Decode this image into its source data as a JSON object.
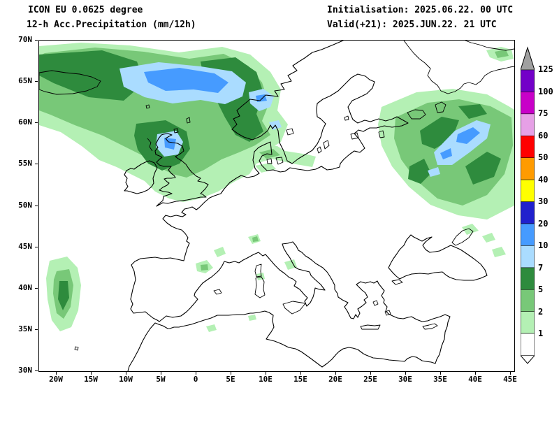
{
  "header": {
    "model_line": "ICON EU 0.0625 degree",
    "product_line": "12-h Acc.Precipitation (mm/12h)",
    "init_line": "Initialisation: 2025.06.22. 00 UTC",
    "valid_line": "Valid(+21): 2025.JUN.22. 21 UTC"
  },
  "axes": {
    "lat": [
      "70N",
      "65N",
      "60N",
      "55N",
      "50N",
      "45N",
      "40N",
      "35N",
      "30N"
    ],
    "lon": [
      "20W",
      "15W",
      "10W",
      "5W",
      "0",
      "5E",
      "10E",
      "15E",
      "20E",
      "25E",
      "30E",
      "35E",
      "40E",
      "45E"
    ]
  },
  "legend": {
    "values": [
      "125",
      "100",
      "75",
      "60",
      "50",
      "40",
      "30",
      "20",
      "10",
      "7",
      "5",
      "2",
      "1"
    ],
    "colors": [
      "#a0a0a0",
      "#7300c8",
      "#c800c8",
      "#e6a0e6",
      "#ff0000",
      "#ff9b00",
      "#ffff00",
      "#2020cd",
      "#469bff",
      "#aadcff",
      "#2e8b3d",
      "#78c878",
      "#b4f0b4",
      "#ffffff"
    ]
  }
}
